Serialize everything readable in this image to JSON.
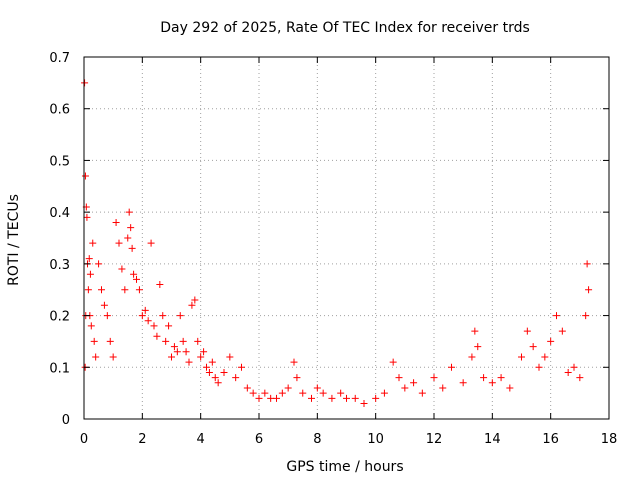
{
  "chart_data": {
    "type": "scatter",
    "title": "Day 292 of 2025, Rate Of TEC Index for receiver trds",
    "xlabel": "GPS time / hours",
    "ylabel": "ROTI / TECUs",
    "xlim": [
      0,
      18
    ],
    "ylim": [
      0,
      0.7
    ],
    "xticks": [
      0,
      2,
      4,
      6,
      8,
      10,
      12,
      14,
      16,
      18
    ],
    "yticks": [
      0,
      0.1,
      0.2,
      0.3,
      0.4,
      0.5,
      0.6,
      0.7
    ],
    "xtick_labels": [
      "0",
      "2",
      "4",
      "6",
      "8",
      "10",
      "12",
      "14",
      "16",
      "18"
    ],
    "ytick_labels": [
      "0",
      "0.1",
      "0.2",
      "0.3",
      "0.4",
      "0.5",
      "0.6",
      "0.7"
    ],
    "grid": true,
    "marker": "+",
    "color": "#ff0000",
    "series": [
      {
        "name": "ROTI",
        "x": [
          0.02,
          0.04,
          0.05,
          0.06,
          0.08,
          0.1,
          0.12,
          0.15,
          0.18,
          0.2,
          0.22,
          0.25,
          0.3,
          0.35,
          0.4,
          0.5,
          0.6,
          0.7,
          0.8,
          0.9,
          1.0,
          1.1,
          1.2,
          1.3,
          1.4,
          1.5,
          1.55,
          1.6,
          1.65,
          1.7,
          1.8,
          1.9,
          2.0,
          2.1,
          2.2,
          2.3,
          2.4,
          2.5,
          2.6,
          2.7,
          2.8,
          2.9,
          3.0,
          3.1,
          3.2,
          3.3,
          3.4,
          3.5,
          3.6,
          3.7,
          3.8,
          3.9,
          4.0,
          4.1,
          4.2,
          4.3,
          4.4,
          4.5,
          4.6,
          4.8,
          5.0,
          5.2,
          5.4,
          5.6,
          5.8,
          6.0,
          6.2,
          6.4,
          6.6,
          6.8,
          7.0,
          7.2,
          7.3,
          7.5,
          7.8,
          8.0,
          8.2,
          8.5,
          8.8,
          9.0,
          9.3,
          9.6,
          10.0,
          10.3,
          10.6,
          10.8,
          11.0,
          11.3,
          11.6,
          12.0,
          12.3,
          12.6,
          13.0,
          13.3,
          13.4,
          13.5,
          13.7,
          14.0,
          14.3,
          14.6,
          15.0,
          15.2,
          15.4,
          15.6,
          15.8,
          16.0,
          16.2,
          16.4,
          16.6,
          16.8,
          17.0,
          17.2,
          17.25,
          17.3
        ],
        "y": [
          0.65,
          0.1,
          0.47,
          0.2,
          0.41,
          0.39,
          0.3,
          0.25,
          0.31,
          0.2,
          0.28,
          0.18,
          0.34,
          0.15,
          0.12,
          0.3,
          0.25,
          0.22,
          0.2,
          0.15,
          0.12,
          0.38,
          0.34,
          0.29,
          0.25,
          0.35,
          0.4,
          0.37,
          0.33,
          0.28,
          0.27,
          0.25,
          0.2,
          0.21,
          0.19,
          0.34,
          0.18,
          0.16,
          0.26,
          0.2,
          0.15,
          0.18,
          0.12,
          0.14,
          0.13,
          0.2,
          0.15,
          0.13,
          0.11,
          0.22,
          0.23,
          0.15,
          0.12,
          0.13,
          0.1,
          0.09,
          0.11,
          0.08,
          0.07,
          0.09,
          0.12,
          0.08,
          0.1,
          0.06,
          0.05,
          0.04,
          0.05,
          0.04,
          0.04,
          0.05,
          0.06,
          0.11,
          0.08,
          0.05,
          0.04,
          0.06,
          0.05,
          0.04,
          0.05,
          0.04,
          0.04,
          0.03,
          0.04,
          0.05,
          0.11,
          0.08,
          0.06,
          0.07,
          0.05,
          0.08,
          0.06,
          0.1,
          0.07,
          0.12,
          0.17,
          0.14,
          0.08,
          0.07,
          0.08,
          0.06,
          0.12,
          0.17,
          0.14,
          0.1,
          0.12,
          0.15,
          0.2,
          0.17,
          0.09,
          0.1,
          0.08,
          0.2,
          0.3,
          0.25
        ]
      }
    ]
  }
}
